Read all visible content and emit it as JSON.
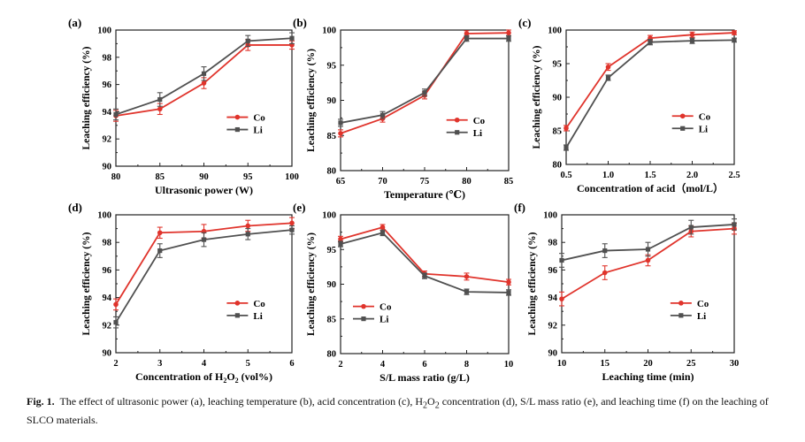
{
  "figure": {
    "caption": {
      "label": "Fig. 1.",
      "text_before_h2o2": "The effect of ultrasonic power (a), leaching temperature (b), acid concentration (c), H",
      "h2o2_sub": "2",
      "h2o2_mid": "O",
      "text_after_h2o2": " concentration (d), S/L mass ratio (e), and leaching time (f) on the leaching of SLCO materials."
    }
  },
  "colors": {
    "co": "#e0342c",
    "li": "#505050",
    "axis": "#222222"
  },
  "chart_data": [
    {
      "panel": "(a)",
      "type": "line",
      "xlabel": "Ultrasonic power (W)",
      "ylabel": "Leaching efficiency (%)",
      "x": [
        80,
        85,
        90,
        95,
        100
      ],
      "xlim": [
        80,
        100
      ],
      "xticks": [
        80,
        85,
        90,
        95,
        100
      ],
      "ylim": [
        90,
        100
      ],
      "yticks": [
        90,
        92,
        94,
        96,
        98,
        100
      ],
      "legend_position": "center-right",
      "series": [
        {
          "name": "Co",
          "marker": "circle",
          "values": [
            93.7,
            94.2,
            96.1,
            98.9,
            98.9
          ],
          "errors": [
            0.4,
            0.4,
            0.4,
            0.4,
            0.3
          ]
        },
        {
          "name": "Li",
          "marker": "square",
          "values": [
            93.8,
            94.9,
            96.8,
            99.2,
            99.4
          ],
          "errors": [
            0.4,
            0.5,
            0.5,
            0.4,
            0.4
          ]
        }
      ]
    },
    {
      "panel": "(b)",
      "type": "line",
      "xlabel": "Temperature (℃)",
      "ylabel": "Leaching efficiency (%)",
      "x": [
        65,
        70,
        75,
        80,
        85
      ],
      "xlim": [
        65,
        85
      ],
      "xticks": [
        65,
        70,
        75,
        80,
        85
      ],
      "ylim": [
        80,
        100
      ],
      "yticks": [
        80,
        85,
        90,
        95,
        100
      ],
      "legend_position": "center-right",
      "series": [
        {
          "name": "Co",
          "marker": "circle",
          "values": [
            85.3,
            87.4,
            90.7,
            99.5,
            99.6
          ],
          "errors": [
            0.5,
            0.5,
            0.5,
            0.4,
            0.4
          ]
        },
        {
          "name": "Li",
          "marker": "square",
          "values": [
            86.8,
            87.9,
            91.1,
            98.8,
            98.8
          ],
          "errors": [
            0.5,
            0.5,
            0.5,
            0.4,
            0.4
          ]
        }
      ]
    },
    {
      "panel": "(c)",
      "type": "line",
      "xlabel": "Concentration of acid（mol/L）",
      "ylabel": "Leaching efficiency (%)",
      "x": [
        0.5,
        1.0,
        1.5,
        2.0,
        2.5
      ],
      "xlim": [
        0.5,
        2.5
      ],
      "xticks": [
        0.5,
        1.0,
        1.5,
        2.0,
        2.5
      ],
      "ylim": [
        80,
        100
      ],
      "yticks": [
        80,
        85,
        90,
        95,
        100
      ],
      "legend_position": "center-right",
      "series": [
        {
          "name": "Co",
          "marker": "circle",
          "values": [
            85.4,
            94.5,
            98.8,
            99.3,
            99.6
          ],
          "errors": [
            0.4,
            0.5,
            0.4,
            0.4,
            0.3
          ]
        },
        {
          "name": "Li",
          "marker": "square",
          "values": [
            82.5,
            92.9,
            98.2,
            98.4,
            98.5
          ],
          "errors": [
            0.4,
            0.4,
            0.4,
            0.4,
            0.3
          ]
        }
      ]
    },
    {
      "panel": "(d)",
      "type": "line",
      "xlabel": "Concentration of H",
      "xlabel_sub": "2",
      "xlabel_mid": "O",
      "xlabel_end": " (vol%)",
      "ylabel": "Leaching efficiency (%)",
      "x": [
        2,
        3,
        4,
        5,
        6
      ],
      "xlim": [
        2,
        6
      ],
      "xticks": [
        2,
        3,
        4,
        5,
        6
      ],
      "ylim": [
        90,
        100
      ],
      "yticks": [
        90,
        92,
        94,
        96,
        98,
        100
      ],
      "legend_position": "center-right",
      "series": [
        {
          "name": "Co",
          "marker": "circle",
          "values": [
            93.5,
            98.7,
            98.8,
            99.2,
            99.4
          ],
          "errors": [
            0.4,
            0.4,
            0.5,
            0.4,
            0.4
          ]
        },
        {
          "name": "Li",
          "marker": "square",
          "values": [
            92.2,
            97.4,
            98.2,
            98.6,
            98.9
          ],
          "errors": [
            0.4,
            0.5,
            0.5,
            0.4,
            0.3
          ]
        }
      ]
    },
    {
      "panel": "(e)",
      "type": "line",
      "xlabel": "S/L mass ratio (g/L)",
      "ylabel": "Leaching efficiency (%)",
      "x": [
        2,
        4,
        6,
        8,
        10
      ],
      "xlim": [
        2,
        10
      ],
      "xticks": [
        2,
        4,
        6,
        8,
        10
      ],
      "ylim": [
        80,
        100
      ],
      "yticks": [
        80,
        85,
        90,
        95,
        100
      ],
      "legend_position": "lower-left",
      "series": [
        {
          "name": "Co",
          "marker": "circle",
          "values": [
            96.5,
            98.2,
            91.5,
            91.1,
            90.3
          ],
          "errors": [
            0.4,
            0.4,
            0.4,
            0.5,
            0.4
          ]
        },
        {
          "name": "Li",
          "marker": "square",
          "values": [
            95.8,
            97.4,
            91.2,
            88.9,
            88.8
          ],
          "errors": [
            0.4,
            0.4,
            0.4,
            0.4,
            0.4
          ]
        }
      ]
    },
    {
      "panel": "(f)",
      "type": "line",
      "xlabel": "Leaching time (min)",
      "ylabel": "Leaching efficiency (%)",
      "x": [
        10,
        15,
        20,
        25,
        30
      ],
      "xlim": [
        10,
        30
      ],
      "xticks": [
        10,
        15,
        20,
        25,
        30
      ],
      "ylim": [
        90,
        100
      ],
      "yticks": [
        90,
        92,
        94,
        96,
        98,
        100
      ],
      "legend_position": "center-right",
      "series": [
        {
          "name": "Co",
          "marker": "circle",
          "values": [
            93.9,
            95.8,
            96.7,
            98.8,
            99.0
          ],
          "errors": [
            0.5,
            0.5,
            0.4,
            0.4,
            0.4
          ]
        },
        {
          "name": "Li",
          "marker": "square",
          "values": [
            96.7,
            97.4,
            97.5,
            99.1,
            99.3
          ],
          "errors": [
            0.5,
            0.5,
            0.5,
            0.5,
            0.4
          ]
        }
      ]
    }
  ]
}
